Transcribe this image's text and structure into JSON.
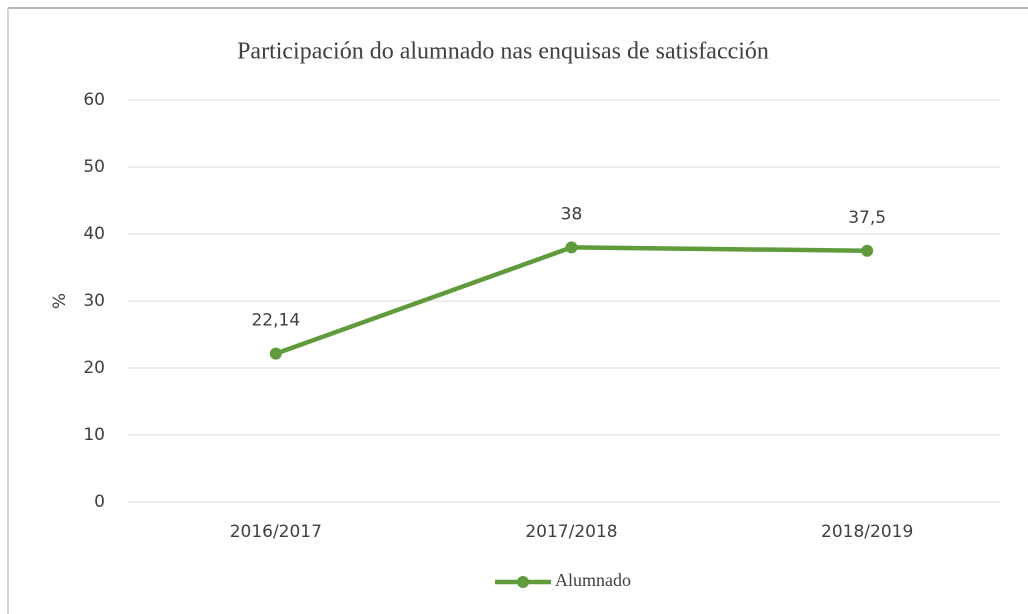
{
  "chart_data": {
    "type": "line",
    "title": "Participación do alumnado nas enquisas de satisfacción",
    "y_label": "%",
    "categories": [
      "2016/2017",
      "2017/2018",
      "2018/2019"
    ],
    "series": [
      {
        "name": "Alumnado",
        "color": "#5f9b3b",
        "values": [
          22.14,
          38,
          37.5
        ],
        "value_labels": [
          "22,14",
          "38",
          "37,5"
        ]
      }
    ],
    "ylim": [
      0,
      60
    ],
    "yticks": [
      0,
      10,
      20,
      30,
      40,
      50,
      60
    ],
    "grid": true,
    "legend": "bottom"
  }
}
